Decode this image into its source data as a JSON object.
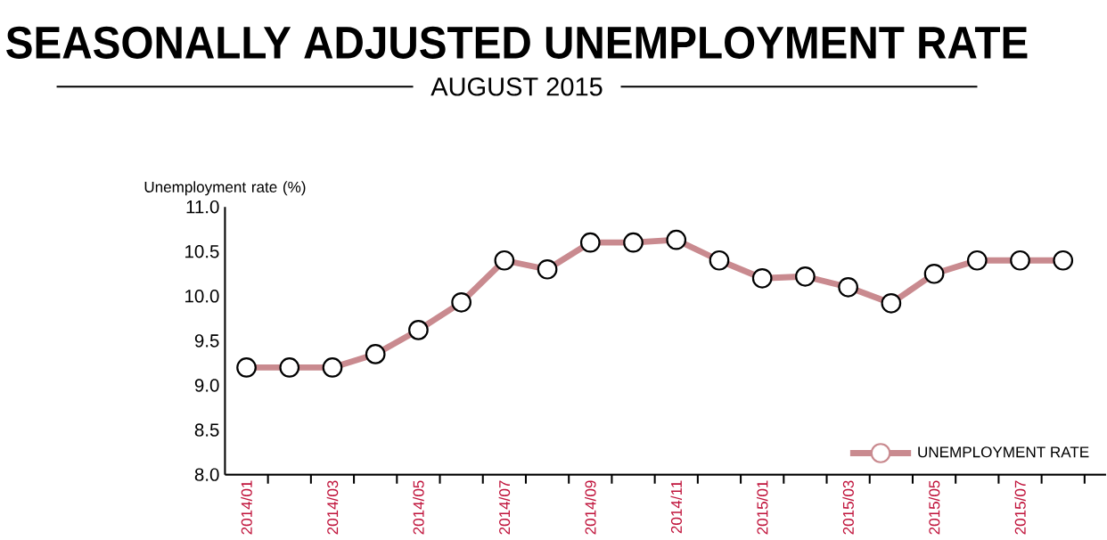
{
  "chart_data": {
    "type": "line",
    "title": "SEASONALLY ADJUSTED UNEMPLOYMENT RATE",
    "subtitle": "AUGUST 2015",
    "ylabel": "Unemployment rate (%)",
    "categories": [
      "2014/01",
      null,
      "2014/03",
      null,
      "2014/05",
      null,
      "2014/07",
      null,
      "2014/09",
      null,
      "2014/11",
      null,
      "2015/01",
      null,
      "2015/03",
      null,
      "2015/05",
      null,
      "2015/07",
      null
    ],
    "series": [
      {
        "name": "UNEMPLOYMENT RATE",
        "color": "#c98a8f",
        "values": [
          9.2,
          9.2,
          9.2,
          9.35,
          9.62,
          9.93,
          10.4,
          10.3,
          10.6,
          10.6,
          10.63,
          10.4,
          10.2,
          10.22,
          10.1,
          9.92,
          10.25,
          10.4,
          10.4,
          10.4
        ]
      }
    ],
    "ylim": [
      8.0,
      11.0
    ],
    "yticks": [
      {
        "value": 8.0,
        "label": "8.0"
      },
      {
        "value": 8.5,
        "label": "8.5"
      },
      {
        "value": 9.0,
        "label": "9.0"
      },
      {
        "value": 9.5,
        "label": "9.5"
      },
      {
        "value": 10.0,
        "label": "10.0"
      },
      {
        "value": 10.5,
        "label": "10.5"
      },
      {
        "value": 11.0,
        "label": "11.0"
      }
    ],
    "grid": false,
    "legend": "bottom right",
    "marker": "circle",
    "line_style": "solid"
  }
}
